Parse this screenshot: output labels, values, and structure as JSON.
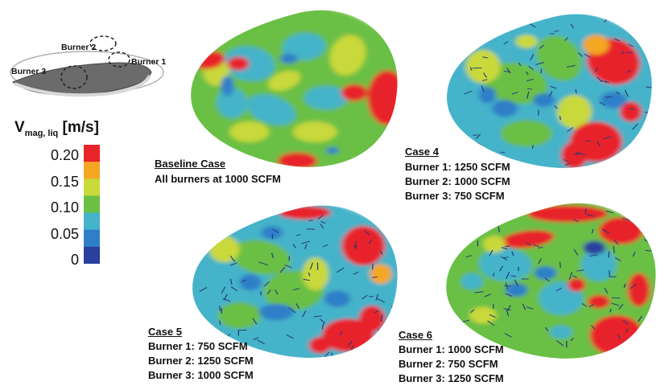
{
  "schematic": {
    "burner1_label": "Burner 1",
    "burner2_label": "Burner 2",
    "burner3_label": "Burner 3"
  },
  "legend": {
    "title_main": "V",
    "title_sub": "mag, liq",
    "title_unit": "[m/s]",
    "ticks": [
      "0.20",
      "0.15",
      "0.10",
      "0.05",
      "0"
    ],
    "colors": [
      "#e8232a",
      "#f5a623",
      "#c9d93a",
      "#6bbf45",
      "#45b3c9",
      "#2f7fc8",
      "#2a3f9e"
    ]
  },
  "cases": [
    {
      "title": "Baseline Case",
      "lines": [
        "All burners at 1000 SCFM"
      ]
    },
    {
      "title": "Case 4",
      "lines": [
        "Burner 1: 1250 SCFM",
        "Burner 2: 1000 SCFM",
        "Burner 3: 750 SCFM"
      ]
    },
    {
      "title": "Case 5",
      "lines": [
        "Burner 1: 750 SCFM",
        "Burner 2: 1250 SCFM",
        "Burner 3: 1000 SCFM"
      ]
    },
    {
      "title": "Case 6",
      "lines": [
        "Burner 1: 1000 SCFM",
        "Burner 2: 750 SCFM",
        "Burner 3: 1250 SCFM"
      ]
    }
  ]
}
